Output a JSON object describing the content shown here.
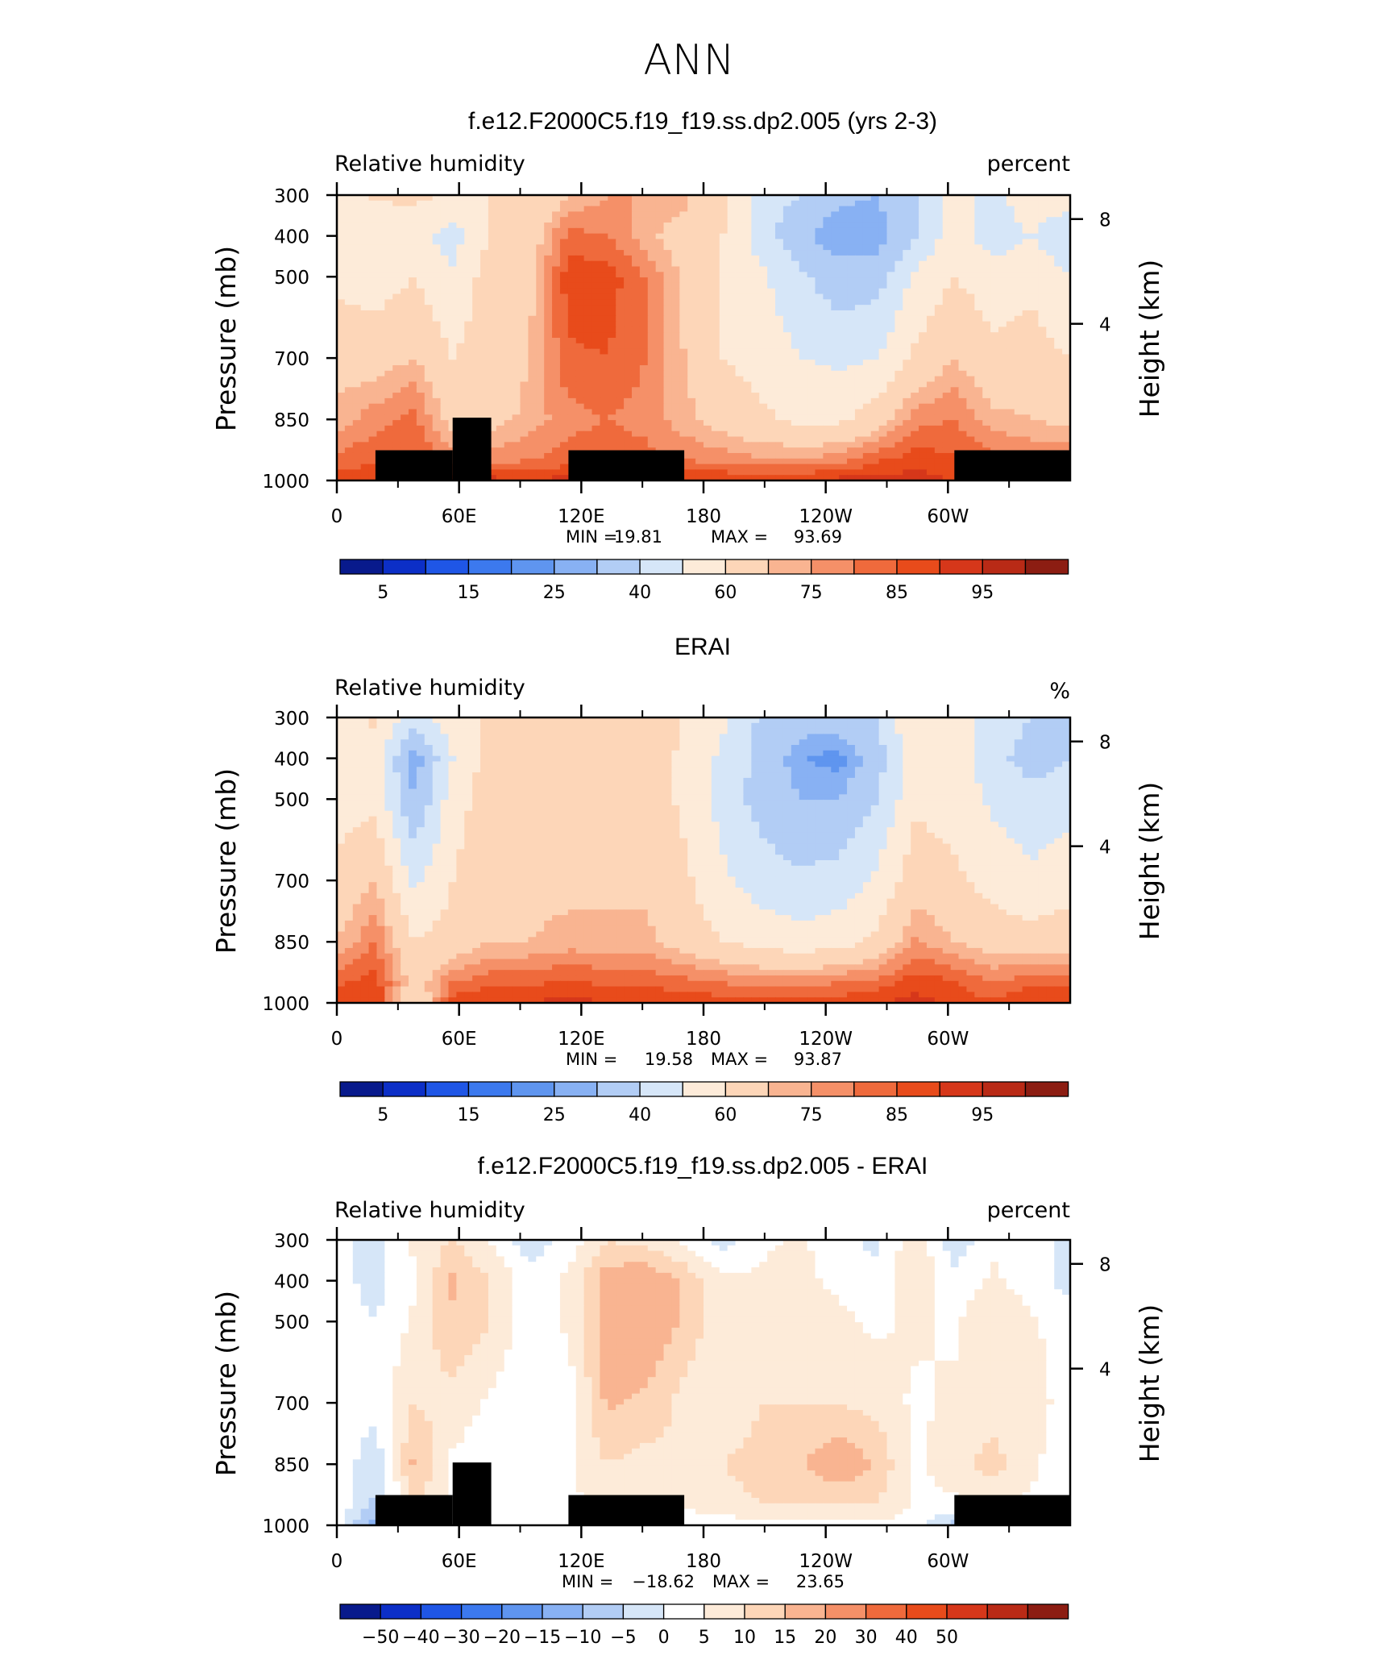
{
  "page_title": "ANN",
  "colors": {
    "rh_levels": [
      "#081a8c",
      "#0c2fc7",
      "#1f56e6",
      "#3c79ee",
      "#5f95ef",
      "#88b1f3",
      "#b2cdf5",
      "#d6e6f8",
      "#fdebd9",
      "#fdd6b8",
      "#f9b491",
      "#f59068",
      "#ef6a3c",
      "#e84b1b",
      "#d6371a",
      "#b92a16",
      "#8c1d12"
    ],
    "diff_levels": [
      "#081a8c",
      "#0c2fc7",
      "#1f56e6",
      "#3c79ee",
      "#5f95ef",
      "#88b1f3",
      "#b2cdf5",
      "#d6e6f8",
      "#ffffff",
      "#fdebd9",
      "#fdd6b8",
      "#f9b491",
      "#f59068",
      "#ef6a3c",
      "#e84b1b",
      "#d6371a",
      "#b92a16",
      "#8c1d12"
    ],
    "terrain": "#000000"
  },
  "chart_data": [
    {
      "type": "heatmap",
      "title": "f.e12.F2000C5.f19_f19.ss.dp2.005 (yrs 2-3)",
      "left_label": "Relative humidity",
      "right_label": "percent",
      "ylabel": "Pressure (mb)",
      "y2label": "Height (km)",
      "x_ticks": [
        "0",
        "60E",
        "120E",
        "180",
        "120W",
        "60W"
      ],
      "y_ticks": [
        "300",
        "400",
        "500",
        "700",
        "850",
        "1000"
      ],
      "y2_ticks": [
        "8",
        "4"
      ],
      "stats": {
        "min_label": "MIN =",
        "min": "19.81",
        "max_label": "MAX =",
        "max": "93.69"
      },
      "colorbar_labels": [
        "5",
        "15",
        "25",
        "40",
        "60",
        "75",
        "85",
        "95"
      ],
      "levels": [
        5,
        10,
        15,
        20,
        25,
        30,
        40,
        50,
        60,
        70,
        75,
        80,
        85,
        90,
        95,
        100
      ],
      "field": [
        [
          57,
          62,
          62,
          59,
          60,
          60,
          70,
          75,
          75,
          72,
          62,
          45,
          40,
          32,
          30,
          40,
          55,
          46,
          58,
          56
        ],
        [
          55,
          50,
          54,
          45,
          62,
          64,
          82,
          80,
          72,
          66,
          60,
          45,
          32,
          25,
          25,
          40,
          56,
          44,
          50,
          40
        ],
        [
          58,
          55,
          60,
          52,
          65,
          68,
          88,
          88,
          80,
          68,
          60,
          52,
          42,
          34,
          36,
          52,
          60,
          55,
          58,
          50
        ],
        [
          66,
          66,
          70,
          60,
          65,
          70,
          84,
          85,
          80,
          70,
          60,
          56,
          50,
          48,
          50,
          62,
          70,
          62,
          64,
          60
        ],
        [
          72,
          78,
          82,
          66,
          67,
          72,
          78,
          80,
          78,
          72,
          66,
          62,
          58,
          58,
          65,
          78,
          80,
          72,
          70,
          68
        ],
        [
          82,
          84,
          86,
          78,
          78,
          80,
          82,
          84,
          82,
          80,
          78,
          76,
          76,
          78,
          84,
          88,
          86,
          82,
          80,
          80
        ],
        [
          88,
          90,
          92,
          88,
          92,
          90,
          92,
          92,
          90,
          90,
          90,
          90,
          90,
          92,
          93,
          92,
          90,
          88,
          92,
          90
        ]
      ],
      "terrain": [
        [
          1,
          3,
          0
        ],
        [
          3,
          4,
          1
        ],
        [
          6,
          9,
          0
        ],
        [
          16,
          19,
          0
        ]
      ]
    },
    {
      "type": "heatmap",
      "title": "ERAI",
      "left_label": "Relative humidity",
      "right_label": "%",
      "ylabel": "Pressure (mb)",
      "y2label": "Height (km)",
      "x_ticks": [
        "0",
        "60E",
        "120E",
        "180",
        "120W",
        "60W"
      ],
      "y_ticks": [
        "300",
        "400",
        "500",
        "700",
        "850",
        "1000"
      ],
      "y2_ticks": [
        "8",
        "4"
      ],
      "stats": {
        "min_label": "MIN =",
        "min": "19.58",
        "max_label": "MAX =",
        "max": "93.87"
      },
      "colorbar_labels": [
        "5",
        "15",
        "25",
        "40",
        "60",
        "75",
        "85",
        "95"
      ],
      "levels": [
        5,
        10,
        15,
        20,
        25,
        30,
        40,
        50,
        60,
        70,
        75,
        80,
        85,
        90,
        95,
        100
      ],
      "field": [
        [
          56,
          62,
          45,
          55,
          62,
          68,
          66,
          64,
          64,
          60,
          52,
          38,
          34,
          36,
          40,
          60,
          58,
          45,
          40,
          38
        ],
        [
          55,
          55,
          25,
          50,
          65,
          66,
          60,
          65,
          66,
          58,
          48,
          36,
          26,
          22,
          35,
          58,
          55,
          44,
          35,
          40
        ],
        [
          56,
          58,
          30,
          55,
          66,
          66,
          62,
          64,
          66,
          58,
          46,
          36,
          30,
          30,
          40,
          58,
          56,
          48,
          44,
          46
        ],
        [
          62,
          70,
          48,
          60,
          68,
          68,
          68,
          68,
          68,
          62,
          52,
          45,
          42,
          44,
          52,
          66,
          62,
          56,
          52,
          56
        ],
        [
          70,
          80,
          60,
          64,
          70,
          70,
          72,
          72,
          72,
          66,
          60,
          56,
          54,
          56,
          62,
          76,
          70,
          66,
          64,
          66
        ],
        [
          84,
          88,
          65,
          80,
          84,
          84,
          86,
          84,
          84,
          82,
          80,
          78,
          78,
          80,
          82,
          88,
          86,
          80,
          84,
          84
        ],
        [
          90,
          90,
          58,
          88,
          90,
          90,
          92,
          90,
          90,
          88,
          88,
          88,
          88,
          88,
          90,
          92,
          88,
          86,
          90,
          90
        ]
      ],
      "terrain": []
    },
    {
      "type": "heatmap",
      "title": "f.e12.F2000C5.f19_f19.ss.dp2.005 - ERAI",
      "left_label": "Relative humidity",
      "right_label": "percent",
      "ylabel": "Pressure (mb)",
      "y2label": "Height (km)",
      "x_ticks": [
        "0",
        "60E",
        "120E",
        "180",
        "120W",
        "60W"
      ],
      "y_ticks": [
        "300",
        "400",
        "500",
        "700",
        "850",
        "1000"
      ],
      "y2_ticks": [
        "8",
        "4"
      ],
      "stats": {
        "min_label": "MIN =",
        "min": "−18.62",
        "max_label": "MAX =",
        "max": "23.65"
      },
      "colorbar_labels": [
        "−50",
        "−40",
        "−30",
        "−20",
        "−15",
        "−10",
        "−5",
        "0",
        "5",
        "10",
        "15",
        "20",
        "30",
        "40",
        "50"
      ],
      "levels": [
        -50,
        -40,
        -30,
        -20,
        -15,
        -10,
        -5,
        0,
        5,
        10,
        15,
        20,
        30,
        40,
        50
      ],
      "field": [
        [
          2,
          -2,
          6,
          10,
          4,
          -3,
          2,
          10,
          8,
          4,
          -2,
          4,
          6,
          2,
          -2,
          10,
          -4,
          4,
          2,
          -2
        ],
        [
          2,
          -2,
          4,
          16,
          10,
          2,
          6,
          18,
          20,
          14,
          6,
          6,
          6,
          4,
          3,
          8,
          2,
          6,
          2,
          -2
        ],
        [
          2,
          0,
          6,
          14,
          10,
          2,
          6,
          18,
          20,
          14,
          6,
          8,
          8,
          6,
          4,
          6,
          4,
          10,
          6,
          2
        ],
        [
          4,
          2,
          10,
          8,
          4,
          0,
          2,
          16,
          14,
          8,
          6,
          10,
          10,
          10,
          8,
          4,
          6,
          8,
          6,
          4
        ],
        [
          4,
          -4,
          16,
          4,
          2,
          2,
          4,
          10,
          8,
          10,
          10,
          12,
          14,
          20,
          14,
          4,
          8,
          12,
          6,
          2
        ],
        [
          4,
          -6,
          10,
          4,
          2,
          2,
          4,
          6,
          4,
          6,
          8,
          10,
          10,
          10,
          10,
          4,
          4,
          6,
          4,
          2
        ],
        [
          2,
          -14,
          6,
          2,
          2,
          2,
          2,
          4,
          2,
          2,
          2,
          4,
          4,
          4,
          4,
          2,
          -8,
          2,
          2,
          2
        ]
      ],
      "terrain": [
        [
          1,
          3,
          0
        ],
        [
          3,
          4,
          1
        ],
        [
          6,
          9,
          0
        ],
        [
          16,
          19,
          0
        ]
      ]
    }
  ]
}
